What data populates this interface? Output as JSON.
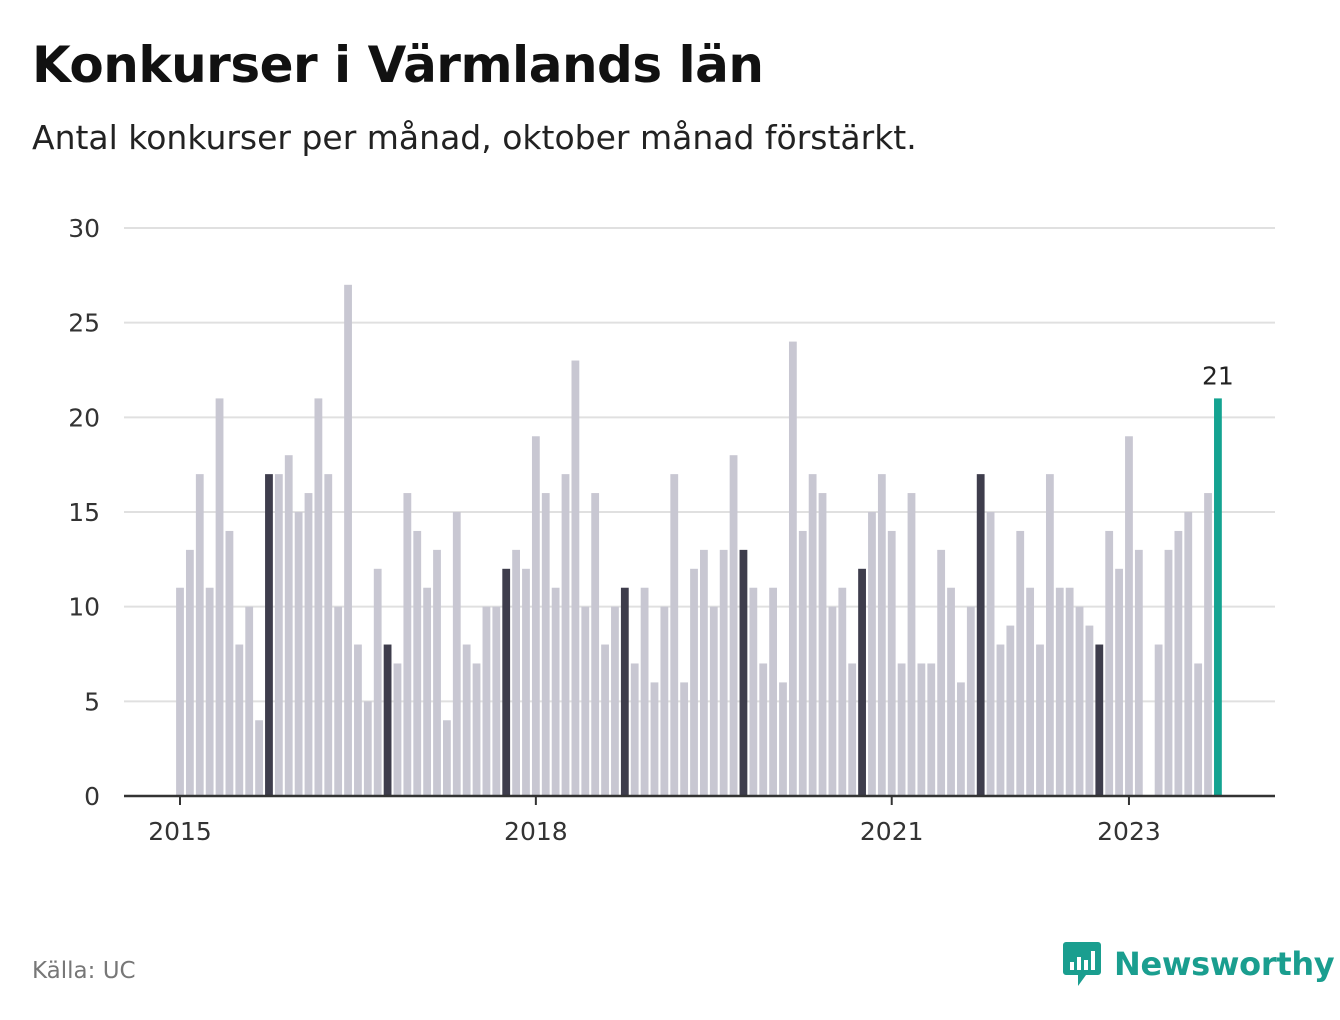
{
  "header": {
    "title": "Konkurser i Värmlands län",
    "subtitle": "Antal konkurser per månad, oktober månad förstärkt."
  },
  "footer": {
    "source": "Källa: UC",
    "brand": "Newsworthy"
  },
  "colors": {
    "bar": "#c8c7d2",
    "highlight": "#3e3d4c",
    "latest": "#14a391",
    "grid": "#e0e0e0",
    "axis": "#333333",
    "brand": "#1a9e8f"
  },
  "chart_data": {
    "type": "bar",
    "title": "Konkurser i Värmlands län",
    "subtitle": "Antal konkurser per månad, oktober månad förstärkt.",
    "start": "2015-01",
    "interval": "month",
    "highlight_month": "oktober",
    "values": [
      11,
      13,
      17,
      11,
      21,
      14,
      8,
      10,
      4,
      17,
      17,
      18,
      15,
      16,
      21,
      17,
      10,
      27,
      8,
      5,
      12,
      8,
      7,
      16,
      14,
      11,
      13,
      4,
      15,
      8,
      7,
      10,
      10,
      12,
      13,
      12,
      19,
      16,
      11,
      17,
      23,
      10,
      16,
      8,
      10,
      11,
      7,
      11,
      6,
      10,
      17,
      6,
      12,
      13,
      10,
      13,
      18,
      13,
      11,
      7,
      11,
      6,
      24,
      14,
      17,
      16,
      10,
      11,
      7,
      12,
      15,
      17,
      14,
      7,
      16,
      7,
      7,
      13,
      11,
      6,
      10,
      17,
      15,
      8,
      9,
      14,
      11,
      8,
      17,
      11,
      11,
      10,
      9,
      8,
      14,
      12,
      19,
      13,
      0,
      8,
      13,
      14,
      15,
      7,
      16,
      21
    ],
    "latest_value_label": "21",
    "x_tick_labels": [
      {
        "label": "2015",
        "index": 0
      },
      {
        "label": "2018",
        "index": 36
      },
      {
        "label": "2021",
        "index": 72
      },
      {
        "label": "2023",
        "index": 96
      }
    ],
    "y_ticks": [
      0,
      5,
      10,
      15,
      20,
      25,
      30
    ],
    "ylim": [
      0,
      30
    ],
    "grid": true
  }
}
